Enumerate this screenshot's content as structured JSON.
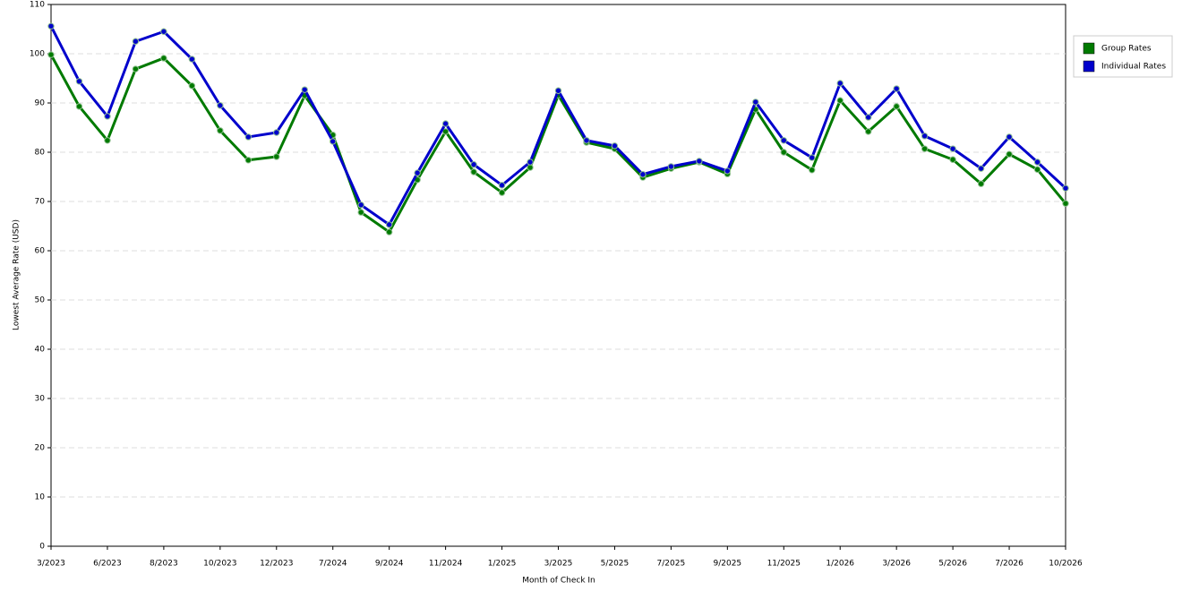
{
  "chart_data": {
    "type": "line",
    "x_label": "Month of Check In",
    "y_label": "Lowest Average Rate (USD)",
    "categories": [
      "3/2023",
      null,
      "6/2023",
      null,
      "8/2023",
      null,
      "10/2023",
      null,
      "12/2023",
      null,
      "7/2024",
      null,
      "9/2024",
      null,
      "11/2024",
      null,
      "1/2025",
      null,
      "3/2025",
      null,
      "5/2025",
      null,
      "7/2025",
      null,
      "9/2025",
      null,
      "11/2025",
      null,
      "1/2026",
      null,
      "3/2026",
      null,
      "5/2026",
      null,
      "7/2026",
      null,
      "10/2026"
    ],
    "series": [
      {
        "name": "Group Rates",
        "color": "#007a00",
        "values": [
          99.8,
          89.3,
          82.4,
          96.9,
          99.1,
          93.5,
          84.4,
          78.4,
          79.1,
          91.5,
          83.5,
          67.8,
          63.8,
          74.4,
          84.2,
          76.0,
          71.8,
          76.9,
          91.6,
          82.0,
          80.7,
          74.9,
          76.7,
          78.0,
          75.6,
          88.7,
          80.0,
          76.4,
          90.5,
          84.2,
          89.3,
          80.7,
          78.5,
          73.6,
          79.6,
          76.5,
          69.6
        ]
      },
      {
        "name": "Individual Rates",
        "color": "#0000cc",
        "values": [
          105.6,
          94.4,
          87.3,
          102.5,
          104.5,
          98.9,
          89.5,
          83.1,
          84.0,
          92.7,
          82.2,
          69.3,
          65.3,
          75.8,
          85.8,
          77.5,
          73.3,
          78.0,
          92.5,
          82.4,
          81.3,
          75.5,
          77.1,
          78.2,
          76.2,
          90.2,
          82.4,
          78.9,
          94.0,
          87.1,
          92.9,
          83.3,
          80.7,
          76.7,
          83.1,
          78.0,
          72.7
        ]
      }
    ],
    "ylim": [
      0,
      110
    ],
    "yticks": [
      0,
      10,
      20,
      30,
      40,
      50,
      60,
      70,
      80,
      90,
      100,
      110
    ],
    "grid": true,
    "legend": "right"
  }
}
